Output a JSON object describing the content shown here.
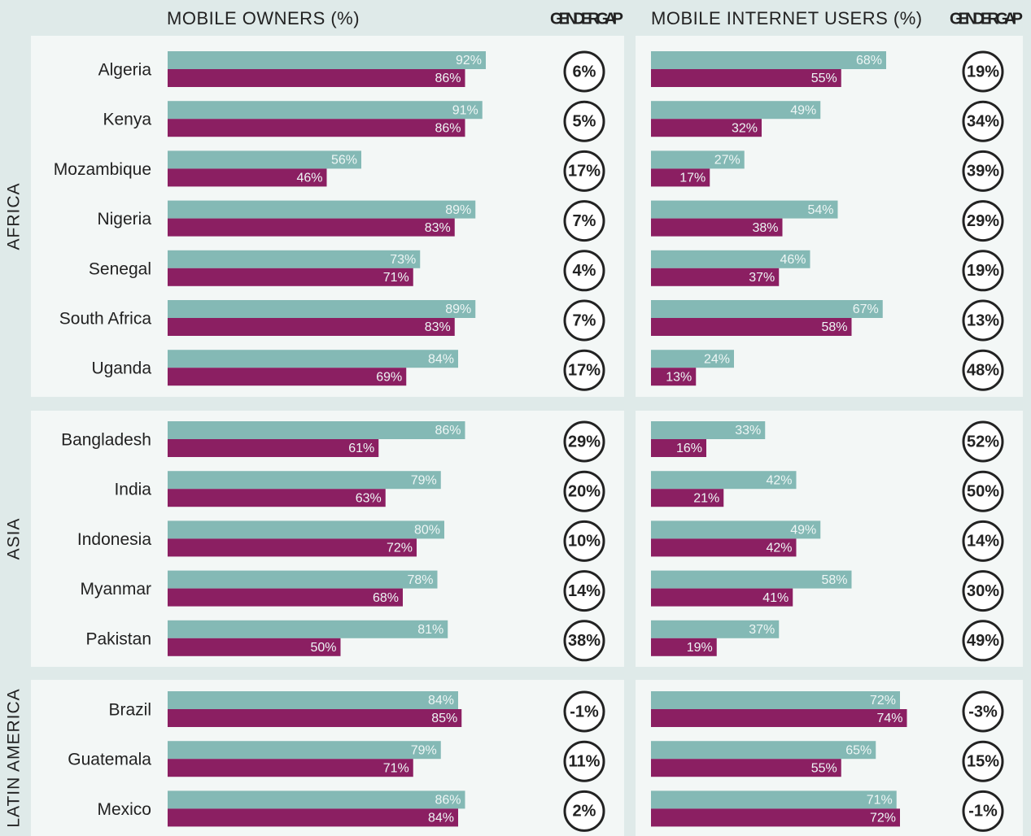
{
  "chart_data": {
    "type": "bar",
    "orientation": "horizontal",
    "headers": {
      "owners": "MOBILE OWNERS (%)",
      "owners_gap": "GENDER GAP",
      "internet": "MOBILE INTERNET USERS (%)",
      "internet_gap": "GENDER GAP"
    },
    "xlim": [
      0,
      100
    ],
    "colors": {
      "men": "#84b9b5",
      "women": "#8b1f62"
    },
    "regions": [
      {
        "name": "AFRICA",
        "categories": [
          "Algeria",
          "Kenya",
          "Mozambique",
          "Nigeria",
          "Senegal",
          "South Africa",
          "Uganda"
        ],
        "owners_men": [
          92,
          91,
          56,
          89,
          73,
          89,
          84
        ],
        "owners_men_labels": [
          "92%",
          "91%",
          "56%",
          "89%",
          "73%",
          "89%",
          "84%"
        ],
        "owners_women": [
          86,
          86,
          46,
          83,
          71,
          83,
          69
        ],
        "owners_women_labels": [
          "86%",
          "86%",
          "46%",
          "83%",
          "71%",
          "83%",
          "69%"
        ],
        "owners_gap": [
          6,
          5,
          17,
          7,
          4,
          7,
          17
        ],
        "owners_gap_labels": [
          "6%",
          "5%",
          "17%",
          "7%",
          "4%",
          "7%",
          "17%"
        ],
        "internet_men": [
          68,
          49,
          27,
          54,
          46,
          67,
          24
        ],
        "internet_men_labels": [
          "68%",
          "49%",
          "27%",
          "54%",
          "46%",
          "67%",
          "24%"
        ],
        "internet_women": [
          55,
          32,
          17,
          38,
          37,
          58,
          13
        ],
        "internet_women_labels": [
          "55%",
          "32%",
          "17%",
          "38%",
          "37%",
          "58%",
          "13%"
        ],
        "internet_gap": [
          19,
          34,
          39,
          29,
          19,
          13,
          48
        ],
        "internet_gap_labels": [
          "19%",
          "34%",
          "39%",
          "29%",
          "19%",
          "13%",
          "48%"
        ]
      },
      {
        "name": "ASIA",
        "categories": [
          "Bangladesh",
          "India",
          "Indonesia",
          "Myanmar",
          "Pakistan"
        ],
        "owners_men": [
          86,
          79,
          80,
          78,
          81
        ],
        "owners_men_labels": [
          "86%",
          "79%",
          "80%",
          "78%",
          "81%"
        ],
        "owners_women": [
          61,
          63,
          72,
          68,
          50
        ],
        "owners_women_labels": [
          "61%",
          "63%",
          "72%",
          "68%",
          "50%"
        ],
        "owners_gap": [
          29,
          20,
          10,
          14,
          38
        ],
        "owners_gap_labels": [
          "29%",
          "20%",
          "10%",
          "14%",
          "38%"
        ],
        "internet_men": [
          33,
          42,
          49,
          58,
          37
        ],
        "internet_men_labels": [
          "33%",
          "42%",
          "49%",
          "58%",
          "37%"
        ],
        "internet_women": [
          16,
          21,
          42,
          41,
          19
        ],
        "internet_women_labels": [
          "16%",
          "21%",
          "42%",
          "41%",
          "19%"
        ],
        "internet_gap": [
          52,
          50,
          14,
          30,
          49
        ],
        "internet_gap_labels": [
          "52%",
          "50%",
          "14%",
          "30%",
          "49%"
        ]
      },
      {
        "name": "LATIN AMERICA",
        "categories": [
          "Brazil",
          "Guatemala",
          "Mexico"
        ],
        "owners_men": [
          84,
          79,
          86
        ],
        "owners_men_labels": [
          "84%",
          "79%",
          "86%"
        ],
        "owners_women": [
          85,
          71,
          84
        ],
        "owners_women_labels": [
          "85%",
          "71%",
          "84%"
        ],
        "owners_gap": [
          -1,
          11,
          2
        ],
        "owners_gap_labels": [
          "-1%",
          "11%",
          "2%"
        ],
        "internet_men": [
          72,
          65,
          71
        ],
        "internet_men_labels": [
          "72%",
          "65%",
          "71%"
        ],
        "internet_women": [
          74,
          55,
          72
        ],
        "internet_women_labels": [
          "74%",
          "55%",
          "72%"
        ],
        "internet_gap": [
          -3,
          15,
          -1
        ],
        "internet_gap_labels": [
          "-3%",
          "15%",
          "-1%"
        ]
      }
    ]
  }
}
